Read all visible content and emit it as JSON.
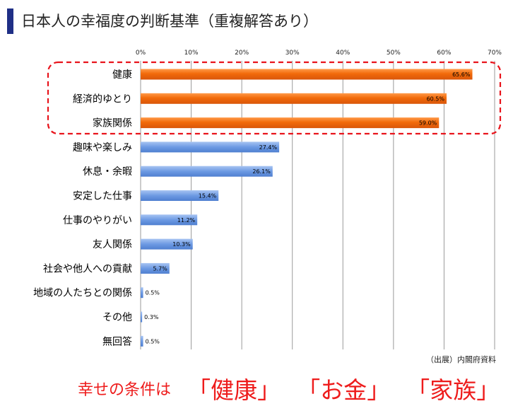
{
  "page": {
    "title": "日本人の幸福度の判断基準（重複解答あり）",
    "source": "（出展）内閣府資料",
    "conclusion": {
      "lead": "幸せの条件は",
      "items": [
        "「健康」",
        "「お金」",
        "「家族」"
      ]
    }
  },
  "colors": {
    "highlight_bar": "#f26a0a",
    "normal_bar": "#6d9ae3",
    "dashed_frame": "#e8141c",
    "accent": "#1f2f86",
    "conclusion_text": "#ee1c1c"
  },
  "chart_data": {
    "type": "bar",
    "orientation": "horizontal",
    "title": "日本人の幸福度の判断基準（重複解答あり）",
    "xlabel": "",
    "ylabel": "",
    "xlim": [
      0,
      70
    ],
    "xticks": [
      0,
      10,
      20,
      30,
      40,
      50,
      60,
      70
    ],
    "tick_labels": [
      "0%",
      "10%",
      "20%",
      "30%",
      "40%",
      "50%",
      "60%",
      "70%"
    ],
    "grid": true,
    "categories": [
      "健康",
      "経済的ゆとり",
      "家族関係",
      "趣味や楽しみ",
      "休息・余暇",
      "安定した仕事",
      "仕事のやりがい",
      "友人関係",
      "社会や他人への貢献",
      "地域の人たちとの関係",
      "その他",
      "無回答"
    ],
    "values": [
      65.6,
      60.5,
      59.0,
      27.4,
      26.1,
      15.4,
      11.2,
      10.3,
      5.7,
      0.5,
      0.3,
      0.5
    ],
    "value_labels": [
      "65.6%",
      "60.5%",
      "59.0%",
      "27.4%",
      "26.1%",
      "15.4%",
      "11.2%",
      "10.3%",
      "5.7%",
      "0.5%",
      "0.3%",
      "0.5%"
    ],
    "highlighted": [
      true,
      true,
      true,
      false,
      false,
      false,
      false,
      false,
      false,
      false,
      false,
      false
    ]
  }
}
